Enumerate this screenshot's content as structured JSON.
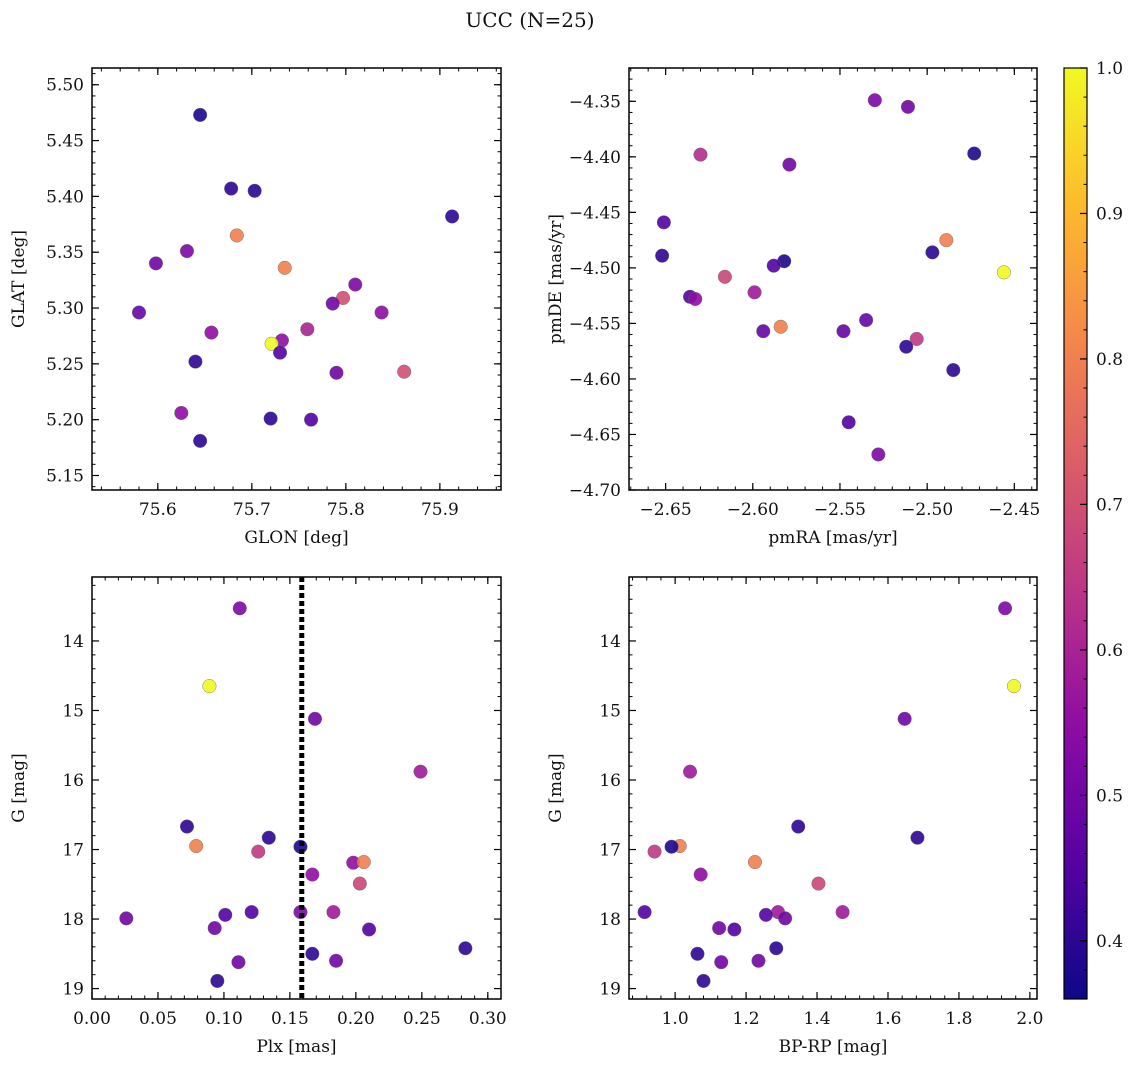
{
  "title": "UCC (N=25)",
  "chart_data": [
    {
      "type": "scatter",
      "xlabel": "GLON [deg]",
      "ylabel": "GLAT [deg]",
      "xlim": [
        75.53,
        75.965
      ],
      "ylim": [
        5.137,
        5.515
      ],
      "xticks": [
        "75.6",
        "75.7",
        "75.8",
        "75.9"
      ],
      "xtick_values": [
        75.6,
        75.7,
        75.8,
        75.9
      ],
      "yticks": [
        "5.15",
        "5.20",
        "5.25",
        "5.30",
        "5.35",
        "5.40",
        "5.45",
        "5.50"
      ],
      "ytick_values": [
        5.15,
        5.2,
        5.25,
        5.3,
        5.35,
        5.4,
        5.45,
        5.5
      ],
      "y_inverted": false,
      "points": [
        {
          "x": 75.645,
          "y": 5.473,
          "c": 0.38
        },
        {
          "x": 75.678,
          "y": 5.407,
          "c": 0.4
        },
        {
          "x": 75.703,
          "y": 5.405,
          "c": 0.4
        },
        {
          "x": 75.913,
          "y": 5.382,
          "c": 0.4
        },
        {
          "x": 75.684,
          "y": 5.365,
          "c": 0.8
        },
        {
          "x": 75.631,
          "y": 5.351,
          "c": 0.52
        },
        {
          "x": 75.598,
          "y": 5.34,
          "c": 0.5
        },
        {
          "x": 75.735,
          "y": 5.336,
          "c": 0.8
        },
        {
          "x": 75.81,
          "y": 5.321,
          "c": 0.52
        },
        {
          "x": 75.797,
          "y": 5.309,
          "c": 0.7
        },
        {
          "x": 75.786,
          "y": 5.304,
          "c": 0.5
        },
        {
          "x": 75.58,
          "y": 5.296,
          "c": 0.48
        },
        {
          "x": 75.838,
          "y": 5.296,
          "c": 0.55
        },
        {
          "x": 75.759,
          "y": 5.281,
          "c": 0.6
        },
        {
          "x": 75.657,
          "y": 5.278,
          "c": 0.55
        },
        {
          "x": 75.732,
          "y": 5.271,
          "c": 0.55
        },
        {
          "x": 75.721,
          "y": 5.268,
          "c": 1.0
        },
        {
          "x": 75.73,
          "y": 5.26,
          "c": 0.45
        },
        {
          "x": 75.64,
          "y": 5.252,
          "c": 0.4
        },
        {
          "x": 75.862,
          "y": 5.243,
          "c": 0.7
        },
        {
          "x": 75.79,
          "y": 5.242,
          "c": 0.5
        },
        {
          "x": 75.625,
          "y": 5.206,
          "c": 0.55
        },
        {
          "x": 75.72,
          "y": 5.201,
          "c": 0.4
        },
        {
          "x": 75.763,
          "y": 5.2,
          "c": 0.45
        },
        {
          "x": 75.645,
          "y": 5.181,
          "c": 0.4
        }
      ]
    },
    {
      "type": "scatter",
      "xlabel": "pmRA [mas/yr]",
      "ylabel": "pmDE [mas/yr]",
      "xlim": [
        -2.671,
        -2.437
      ],
      "ylim": [
        -4.7,
        -4.32
      ],
      "xticks": [
        "−2.65",
        "−2.60",
        "−2.55",
        "−2.50",
        "−2.45"
      ],
      "xtick_values": [
        -2.65,
        -2.6,
        -2.55,
        -2.5,
        -2.45
      ],
      "yticks": [
        "−4.70",
        "−4.65",
        "−4.60",
        "−4.55",
        "−4.50",
        "−4.45",
        "−4.40",
        "−4.35"
      ],
      "ytick_values": [
        -4.7,
        -4.65,
        -4.6,
        -4.55,
        -4.5,
        -4.45,
        -4.4,
        -4.35
      ],
      "y_inverted": false,
      "points": [
        {
          "x": -2.53,
          "y": -4.349,
          "c": 0.52
        },
        {
          "x": -2.511,
          "y": -4.355,
          "c": 0.5
        },
        {
          "x": -2.473,
          "y": -4.397,
          "c": 0.38
        },
        {
          "x": -2.63,
          "y": -4.398,
          "c": 0.62
        },
        {
          "x": -2.579,
          "y": -4.407,
          "c": 0.5
        },
        {
          "x": -2.651,
          "y": -4.459,
          "c": 0.45
        },
        {
          "x": -2.489,
          "y": -4.475,
          "c": 0.8
        },
        {
          "x": -2.497,
          "y": -4.486,
          "c": 0.4
        },
        {
          "x": -2.652,
          "y": -4.489,
          "c": 0.4
        },
        {
          "x": -2.582,
          "y": -4.494,
          "c": 0.38
        },
        {
          "x": -2.588,
          "y": -4.498,
          "c": 0.45
        },
        {
          "x": -2.456,
          "y": -4.504,
          "c": 1.0
        },
        {
          "x": -2.616,
          "y": -4.508,
          "c": 0.68
        },
        {
          "x": -2.599,
          "y": -4.522,
          "c": 0.58
        },
        {
          "x": -2.636,
          "y": -4.526,
          "c": 0.45
        },
        {
          "x": -2.633,
          "y": -4.528,
          "c": 0.55
        },
        {
          "x": -2.535,
          "y": -4.547,
          "c": 0.48
        },
        {
          "x": -2.584,
          "y": -4.553,
          "c": 0.8
        },
        {
          "x": -2.594,
          "y": -4.557,
          "c": 0.48
        },
        {
          "x": -2.548,
          "y": -4.557,
          "c": 0.48
        },
        {
          "x": -2.506,
          "y": -4.564,
          "c": 0.65
        },
        {
          "x": -2.512,
          "y": -4.571,
          "c": 0.4
        },
        {
          "x": -2.485,
          "y": -4.592,
          "c": 0.4
        },
        {
          "x": -2.545,
          "y": -4.639,
          "c": 0.45
        },
        {
          "x": -2.528,
          "y": -4.668,
          "c": 0.52
        }
      ]
    },
    {
      "type": "scatter",
      "xlabel": "Plx [mas]",
      "ylabel": "G [mag]",
      "xlim": [
        0.0,
        0.31
      ],
      "ylim": [
        13.08,
        19.15
      ],
      "xticks": [
        "0.00",
        "0.05",
        "0.10",
        "0.15",
        "0.20",
        "0.25",
        "0.30"
      ],
      "xtick_values": [
        0.0,
        0.05,
        0.1,
        0.15,
        0.2,
        0.25,
        0.3
      ],
      "yticks": [
        "14",
        "15",
        "16",
        "17",
        "18",
        "19"
      ],
      "ytick_values": [
        14,
        15,
        16,
        17,
        18,
        19
      ],
      "y_inverted": true,
      "vline": 0.159,
      "points": [
        {
          "x": 0.112,
          "y": 13.53,
          "c": 0.52
        },
        {
          "x": 0.089,
          "y": 14.65,
          "c": 1.0
        },
        {
          "x": 0.169,
          "y": 15.12,
          "c": 0.5
        },
        {
          "x": 0.249,
          "y": 15.88,
          "c": 0.58
        },
        {
          "x": 0.072,
          "y": 16.67,
          "c": 0.4
        },
        {
          "x": 0.134,
          "y": 16.83,
          "c": 0.4
        },
        {
          "x": 0.079,
          "y": 16.95,
          "c": 0.8
        },
        {
          "x": 0.158,
          "y": 16.96,
          "c": 0.38
        },
        {
          "x": 0.126,
          "y": 17.03,
          "c": 0.65
        },
        {
          "x": 0.198,
          "y": 17.19,
          "c": 0.55
        },
        {
          "x": 0.206,
          "y": 17.18,
          "c": 0.8
        },
        {
          "x": 0.167,
          "y": 17.36,
          "c": 0.55
        },
        {
          "x": 0.203,
          "y": 17.49,
          "c": 0.68
        },
        {
          "x": 0.121,
          "y": 17.9,
          "c": 0.45
        },
        {
          "x": 0.158,
          "y": 17.9,
          "c": 0.52
        },
        {
          "x": 0.183,
          "y": 17.9,
          "c": 0.58
        },
        {
          "x": 0.101,
          "y": 17.94,
          "c": 0.45
        },
        {
          "x": 0.026,
          "y": 17.99,
          "c": 0.5
        },
        {
          "x": 0.093,
          "y": 18.13,
          "c": 0.5
        },
        {
          "x": 0.21,
          "y": 18.15,
          "c": 0.45
        },
        {
          "x": 0.283,
          "y": 18.42,
          "c": 0.4
        },
        {
          "x": 0.167,
          "y": 18.5,
          "c": 0.4
        },
        {
          "x": 0.111,
          "y": 18.62,
          "c": 0.5
        },
        {
          "x": 0.185,
          "y": 18.6,
          "c": 0.5
        },
        {
          "x": 0.095,
          "y": 18.89,
          "c": 0.4
        }
      ]
    },
    {
      "type": "scatter",
      "xlabel": "BP-RP [mag]",
      "ylabel": "G [mag]",
      "xlim": [
        0.87,
        2.02
      ],
      "ylim": [
        13.08,
        19.15
      ],
      "xticks": [
        "1.0",
        "1.2",
        "1.4",
        "1.6",
        "1.8",
        "2.0"
      ],
      "xtick_values": [
        1.0,
        1.2,
        1.4,
        1.6,
        1.8,
        2.0
      ],
      "yticks": [
        "14",
        "15",
        "16",
        "17",
        "18",
        "19"
      ],
      "ytick_values": [
        14,
        15,
        16,
        17,
        18,
        19
      ],
      "y_inverted": true,
      "points": [
        {
          "x": 1.93,
          "y": 13.53,
          "c": 0.52
        },
        {
          "x": 1.955,
          "y": 14.65,
          "c": 1.0
        },
        {
          "x": 1.647,
          "y": 15.12,
          "c": 0.5
        },
        {
          "x": 1.042,
          "y": 15.88,
          "c": 0.58
        },
        {
          "x": 1.347,
          "y": 16.67,
          "c": 0.4
        },
        {
          "x": 1.683,
          "y": 16.83,
          "c": 0.4
        },
        {
          "x": 1.013,
          "y": 16.95,
          "c": 0.8
        },
        {
          "x": 0.99,
          "y": 16.96,
          "c": 0.38
        },
        {
          "x": 0.942,
          "y": 17.03,
          "c": 0.65
        },
        {
          "x": 1.225,
          "y": 17.18,
          "c": 0.8
        },
        {
          "x": 1.072,
          "y": 17.36,
          "c": 0.55
        },
        {
          "x": 1.404,
          "y": 17.49,
          "c": 0.68
        },
        {
          "x": 0.914,
          "y": 17.9,
          "c": 0.45
        },
        {
          "x": 1.29,
          "y": 17.9,
          "c": 0.58
        },
        {
          "x": 1.472,
          "y": 17.9,
          "c": 0.58
        },
        {
          "x": 1.256,
          "y": 17.94,
          "c": 0.45
        },
        {
          "x": 1.31,
          "y": 17.99,
          "c": 0.5
        },
        {
          "x": 1.124,
          "y": 18.13,
          "c": 0.5
        },
        {
          "x": 1.167,
          "y": 18.15,
          "c": 0.45
        },
        {
          "x": 1.285,
          "y": 18.42,
          "c": 0.4
        },
        {
          "x": 1.063,
          "y": 18.5,
          "c": 0.4
        },
        {
          "x": 1.13,
          "y": 18.62,
          "c": 0.5
        },
        {
          "x": 1.235,
          "y": 18.6,
          "c": 0.5
        },
        {
          "x": 1.08,
          "y": 18.89,
          "c": 0.4
        }
      ]
    }
  ],
  "colorbar": {
    "cmap": "plasma",
    "range": [
      0.36,
      1.0
    ],
    "tick_values": [
      0.4,
      0.5,
      0.6,
      0.7,
      0.8,
      0.9,
      1.0
    ],
    "tick_labels": [
      "0.4",
      "0.5",
      "0.6",
      "0.7",
      "0.8",
      "0.9",
      "1.0"
    ]
  }
}
